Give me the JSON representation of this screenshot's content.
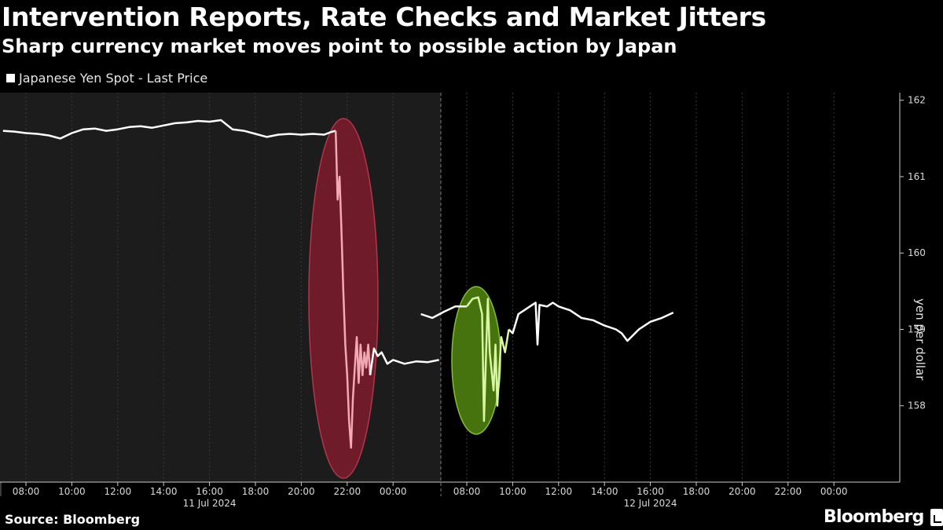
{
  "header": {
    "title": "Intervention Reports, Rate Checks and Market Jitters",
    "subtitle": "Sharp currency market moves point to possible action by Japan"
  },
  "legend": {
    "label": "Japanese Yen Spot - Last Price"
  },
  "footer": {
    "source": "Source: Bloomberg",
    "brand": "Bloomberg"
  },
  "colors": {
    "background": "#000000",
    "shaded_region": "#1c1c1c",
    "line": "#ffffff",
    "red_highlight": "#7a1b2b",
    "red_line": "#f2a9b4",
    "green_highlight": "#4a7a0f",
    "green_line": "#d8f5a2",
    "grid": "#3a3a3a"
  },
  "chart_data": {
    "type": "line",
    "title": "Intervention Reports, Rate Checks and Market Jitters",
    "subtitle": "Sharp currency market moves point to possible action by Japan",
    "ylabel": "yen per dollar",
    "ylim": [
      157.0,
      162.1
    ],
    "y_ticks": [
      "158",
      "159",
      "160",
      "161",
      "162"
    ],
    "x_ticks": [
      "08:00",
      "10:00",
      "12:00",
      "14:00",
      "16:00",
      "18:00",
      "20:00",
      "22:00",
      "00:00",
      "08:00",
      "10:00",
      "12:00",
      "14:00",
      "16:00",
      "18:00",
      "20:00",
      "22:00",
      "00:00"
    ],
    "date_labels": [
      "11 Jul 2024",
      "12 Jul 2024"
    ],
    "grid": "vertical",
    "legend_position": "top-left",
    "series": [
      {
        "name": "Japanese Yen Spot - Last Price",
        "day1": [
          [
            "07:00",
            161.6
          ],
          [
            "07:30",
            161.59
          ],
          [
            "08:00",
            161.57
          ],
          [
            "08:30",
            161.56
          ],
          [
            "09:00",
            161.54
          ],
          [
            "09:30",
            161.5
          ],
          [
            "10:00",
            161.57
          ],
          [
            "10:30",
            161.62
          ],
          [
            "11:00",
            161.63
          ],
          [
            "11:30",
            161.6
          ],
          [
            "12:00",
            161.62
          ],
          [
            "12:30",
            161.65
          ],
          [
            "13:00",
            161.66
          ],
          [
            "13:30",
            161.64
          ],
          [
            "14:00",
            161.67
          ],
          [
            "14:30",
            161.7
          ],
          [
            "15:00",
            161.71
          ],
          [
            "15:30",
            161.73
          ],
          [
            "16:00",
            161.72
          ],
          [
            "16:30",
            161.74
          ],
          [
            "17:00",
            161.62
          ],
          [
            "17:30",
            161.6
          ],
          [
            "18:00",
            161.56
          ],
          [
            "18:30",
            161.52
          ],
          [
            "19:00",
            161.55
          ],
          [
            "19:30",
            161.56
          ],
          [
            "20:00",
            161.55
          ],
          [
            "20:30",
            161.56
          ],
          [
            "21:00",
            161.55
          ],
          [
            "21:15",
            161.58
          ],
          [
            "21:30",
            161.6
          ],
          [
            "21:35",
            160.7
          ],
          [
            "21:40",
            161.0
          ],
          [
            "21:45",
            160.3
          ],
          [
            "21:50",
            159.5
          ],
          [
            "21:55",
            158.8
          ],
          [
            "22:00",
            158.4
          ],
          [
            "22:05",
            157.8
          ],
          [
            "22:10",
            157.45
          ],
          [
            "22:15",
            158.1
          ],
          [
            "22:20",
            158.5
          ],
          [
            "22:25",
            158.9
          ],
          [
            "22:30",
            158.3
          ],
          [
            "22:35",
            158.8
          ],
          [
            "22:40",
            158.4
          ],
          [
            "22:45",
            158.7
          ],
          [
            "22:50",
            158.5
          ],
          [
            "22:55",
            158.8
          ],
          [
            "23:00",
            158.4
          ],
          [
            "23:10",
            158.75
          ],
          [
            "23:20",
            158.65
          ],
          [
            "23:30",
            158.7
          ],
          [
            "23:45",
            158.55
          ],
          [
            "00:00",
            158.6
          ],
          [
            "00:30",
            158.55
          ],
          [
            "01:00",
            158.58
          ],
          [
            "01:30",
            158.57
          ],
          [
            "02:00",
            158.6
          ]
        ],
        "day2": [
          [
            "06:00",
            159.2
          ],
          [
            "06:30",
            159.15
          ],
          [
            "07:00",
            159.23
          ],
          [
            "07:30",
            159.3
          ],
          [
            "08:00",
            159.3
          ],
          [
            "08:15",
            159.4
          ],
          [
            "08:30",
            159.42
          ],
          [
            "08:40",
            159.2
          ],
          [
            "08:45",
            157.8
          ],
          [
            "08:50",
            158.6
          ],
          [
            "08:55",
            159.4
          ],
          [
            "09:00",
            158.7
          ],
          [
            "09:10",
            158.2
          ],
          [
            "09:15",
            158.8
          ],
          [
            "09:20",
            158.0
          ],
          [
            "09:30",
            158.9
          ],
          [
            "09:40",
            158.7
          ],
          [
            "09:50",
            159.0
          ],
          [
            "10:00",
            158.95
          ],
          [
            "10:15",
            159.2
          ],
          [
            "10:30",
            159.25
          ],
          [
            "10:45",
            159.3
          ],
          [
            "11:00",
            159.35
          ],
          [
            "11:05",
            158.8
          ],
          [
            "11:10",
            159.32
          ],
          [
            "11:30",
            159.3
          ],
          [
            "11:45",
            159.35
          ],
          [
            "12:00",
            159.3
          ],
          [
            "12:30",
            159.25
          ],
          [
            "13:00",
            159.15
          ],
          [
            "13:30",
            159.12
          ],
          [
            "14:00",
            159.05
          ],
          [
            "14:30",
            159.0
          ],
          [
            "14:45",
            158.95
          ],
          [
            "15:00",
            158.85
          ],
          [
            "15:30",
            159.0
          ],
          [
            "16:00",
            159.1
          ],
          [
            "16:30",
            159.15
          ],
          [
            "17:00",
            159.22
          ]
        ]
      }
    ],
    "highlights": [
      {
        "color": "red",
        "from": "21:00",
        "to": "23:00",
        "day": "11 Jul 2024"
      },
      {
        "color": "green",
        "from": "07:30",
        "to": "09:30",
        "day": "12 Jul 2024"
      }
    ]
  }
}
